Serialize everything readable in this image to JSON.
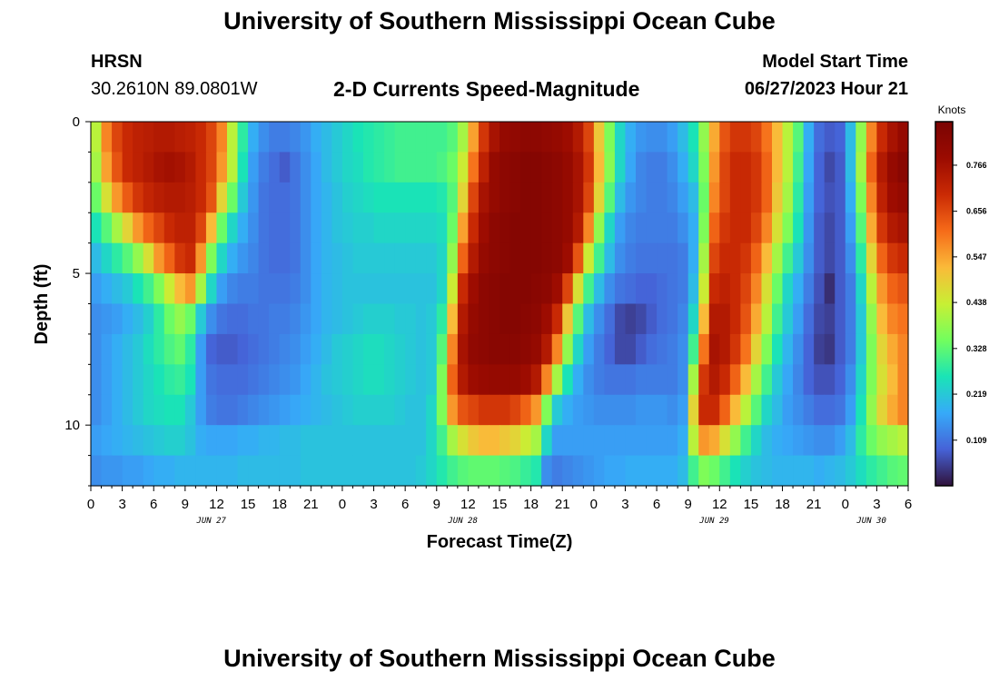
{
  "page": {
    "title_top": "University of Southern Mississippi Ocean Cube",
    "title_bottom": "University of Southern Mississippi Ocean Cube",
    "station_name": "HRSN",
    "station_coords": "30.2610N  89.0801W",
    "model_label": "Model Start Time",
    "model_time": "06/27/2023 Hour 21"
  },
  "chart_data": {
    "type": "heatmap",
    "title": "2-D Currents Speed-Magnitude",
    "xlabel": "Forecast Time(Z)",
    "ylabel": "Depth (ft)",
    "colorbar_label": "Knots",
    "colorbar_ticks": [
      "0.766",
      "0.656",
      "0.547",
      "0.438",
      "0.328",
      "0.219",
      "0.109"
    ],
    "colorbar_range": [
      0.0,
      0.87
    ],
    "x_range_hours": [
      0,
      78
    ],
    "y_range_ft": [
      0,
      12
    ],
    "x_tick_labels": [
      "0",
      "3",
      "6",
      "9",
      "12",
      "15",
      "18",
      "21",
      "0",
      "3",
      "6",
      "9",
      "12",
      "15",
      "18",
      "21",
      "0",
      "3",
      "6",
      "9",
      "12",
      "15",
      "18",
      "21",
      "0",
      "3",
      "6"
    ],
    "y_tick_labels": [
      "0",
      "5",
      "10"
    ],
    "date_labels": [
      "JUN 27",
      "JUN 28",
      "JUN 29",
      "JUN 30"
    ],
    "hours": [
      0,
      1,
      2,
      3,
      4,
      5,
      6,
      7,
      8,
      9,
      10,
      11,
      12,
      13,
      14,
      15,
      16,
      17,
      18,
      19,
      20,
      21,
      22,
      23,
      24,
      25,
      26,
      27,
      28,
      29,
      30,
      31,
      32,
      33,
      34,
      35,
      36,
      37,
      38,
      39,
      40,
      41,
      42,
      43,
      44,
      45,
      46,
      47,
      48,
      49,
      50,
      51,
      52,
      53,
      54,
      55,
      56,
      57,
      58,
      59,
      60,
      61,
      62,
      63,
      64,
      65,
      66,
      67,
      68,
      69,
      70,
      71,
      72,
      73,
      74,
      75,
      76,
      77
    ],
    "depths_ft": [
      0.5,
      1.5,
      2.5,
      3.5,
      4.5,
      5.5,
      6.5,
      7.5,
      8.5,
      9.5,
      10.5,
      11.5
    ],
    "speed_knots": [
      [
        0.42,
        0.58,
        0.66,
        0.7,
        0.72,
        0.73,
        0.74,
        0.74,
        0.73,
        0.72,
        0.7,
        0.66,
        0.58,
        0.42,
        0.28,
        0.18,
        0.14,
        0.12,
        0.12,
        0.13,
        0.15,
        0.18,
        0.2,
        0.22,
        0.24,
        0.26,
        0.27,
        0.28,
        0.29,
        0.3,
        0.3,
        0.3,
        0.3,
        0.3,
        0.32,
        0.4,
        0.55,
        0.68,
        0.76,
        0.8,
        0.81,
        0.82,
        0.82,
        0.81,
        0.8,
        0.78,
        0.74,
        0.66,
        0.5,
        0.36,
        0.24,
        0.18,
        0.15,
        0.14,
        0.14,
        0.16,
        0.2,
        0.26,
        0.38,
        0.54,
        0.64,
        0.68,
        0.68,
        0.66,
        0.6,
        0.52,
        0.42,
        0.32,
        0.18,
        0.1,
        0.08,
        0.09,
        0.2,
        0.38,
        0.58,
        0.7,
        0.76,
        0.8
      ],
      [
        0.4,
        0.55,
        0.64,
        0.7,
        0.72,
        0.74,
        0.76,
        0.77,
        0.76,
        0.74,
        0.7,
        0.66,
        0.56,
        0.42,
        0.26,
        0.16,
        0.12,
        0.1,
        0.08,
        0.11,
        0.14,
        0.17,
        0.2,
        0.22,
        0.24,
        0.25,
        0.27,
        0.28,
        0.29,
        0.3,
        0.3,
        0.3,
        0.3,
        0.31,
        0.34,
        0.44,
        0.6,
        0.72,
        0.8,
        0.82,
        0.83,
        0.84,
        0.84,
        0.83,
        0.82,
        0.8,
        0.76,
        0.68,
        0.52,
        0.37,
        0.24,
        0.17,
        0.13,
        0.12,
        0.12,
        0.14,
        0.18,
        0.24,
        0.36,
        0.56,
        0.66,
        0.7,
        0.7,
        0.68,
        0.62,
        0.52,
        0.42,
        0.3,
        0.17,
        0.09,
        0.06,
        0.08,
        0.2,
        0.4,
        0.62,
        0.74,
        0.8,
        0.83
      ],
      [
        0.34,
        0.46,
        0.56,
        0.63,
        0.68,
        0.71,
        0.73,
        0.74,
        0.74,
        0.73,
        0.7,
        0.64,
        0.48,
        0.34,
        0.22,
        0.15,
        0.11,
        0.1,
        0.1,
        0.11,
        0.14,
        0.17,
        0.19,
        0.21,
        0.23,
        0.24,
        0.25,
        0.26,
        0.26,
        0.26,
        0.26,
        0.26,
        0.26,
        0.27,
        0.32,
        0.48,
        0.66,
        0.76,
        0.8,
        0.82,
        0.83,
        0.84,
        0.84,
        0.83,
        0.82,
        0.8,
        0.76,
        0.66,
        0.48,
        0.32,
        0.2,
        0.15,
        0.13,
        0.12,
        0.12,
        0.13,
        0.16,
        0.2,
        0.34,
        0.58,
        0.66,
        0.7,
        0.7,
        0.68,
        0.62,
        0.5,
        0.4,
        0.28,
        0.16,
        0.09,
        0.07,
        0.08,
        0.18,
        0.36,
        0.58,
        0.72,
        0.78,
        0.8
      ],
      [
        0.26,
        0.32,
        0.4,
        0.48,
        0.56,
        0.62,
        0.66,
        0.7,
        0.72,
        0.72,
        0.66,
        0.52,
        0.34,
        0.24,
        0.18,
        0.14,
        0.11,
        0.1,
        0.1,
        0.11,
        0.14,
        0.17,
        0.19,
        0.21,
        0.22,
        0.23,
        0.23,
        0.24,
        0.24,
        0.24,
        0.24,
        0.24,
        0.24,
        0.25,
        0.34,
        0.55,
        0.7,
        0.78,
        0.82,
        0.83,
        0.84,
        0.84,
        0.84,
        0.83,
        0.82,
        0.8,
        0.74,
        0.58,
        0.38,
        0.24,
        0.16,
        0.13,
        0.12,
        0.12,
        0.12,
        0.12,
        0.14,
        0.18,
        0.36,
        0.62,
        0.68,
        0.7,
        0.7,
        0.66,
        0.58,
        0.46,
        0.36,
        0.26,
        0.15,
        0.08,
        0.06,
        0.08,
        0.16,
        0.32,
        0.54,
        0.68,
        0.74,
        0.76
      ],
      [
        0.2,
        0.24,
        0.28,
        0.32,
        0.38,
        0.46,
        0.56,
        0.62,
        0.68,
        0.7,
        0.56,
        0.36,
        0.24,
        0.18,
        0.15,
        0.13,
        0.11,
        0.1,
        0.1,
        0.11,
        0.14,
        0.17,
        0.19,
        0.2,
        0.21,
        0.22,
        0.22,
        0.22,
        0.22,
        0.22,
        0.22,
        0.22,
        0.22,
        0.24,
        0.38,
        0.62,
        0.74,
        0.8,
        0.82,
        0.83,
        0.84,
        0.84,
        0.84,
        0.83,
        0.82,
        0.78,
        0.64,
        0.44,
        0.3,
        0.2,
        0.14,
        0.12,
        0.11,
        0.11,
        0.11,
        0.11,
        0.12,
        0.18,
        0.4,
        0.66,
        0.7,
        0.7,
        0.68,
        0.62,
        0.52,
        0.4,
        0.3,
        0.22,
        0.14,
        0.08,
        0.06,
        0.08,
        0.14,
        0.28,
        0.48,
        0.62,
        0.68,
        0.7
      ],
      [
        0.16,
        0.18,
        0.2,
        0.22,
        0.26,
        0.3,
        0.36,
        0.44,
        0.52,
        0.56,
        0.4,
        0.24,
        0.16,
        0.13,
        0.12,
        0.12,
        0.11,
        0.11,
        0.11,
        0.12,
        0.14,
        0.17,
        0.19,
        0.2,
        0.21,
        0.21,
        0.21,
        0.21,
        0.21,
        0.21,
        0.21,
        0.21,
        0.21,
        0.24,
        0.44,
        0.7,
        0.78,
        0.82,
        0.83,
        0.84,
        0.84,
        0.84,
        0.83,
        0.82,
        0.78,
        0.66,
        0.46,
        0.3,
        0.2,
        0.14,
        0.11,
        0.1,
        0.09,
        0.09,
        0.1,
        0.11,
        0.12,
        0.2,
        0.44,
        0.7,
        0.72,
        0.7,
        0.66,
        0.58,
        0.46,
        0.34,
        0.24,
        0.18,
        0.12,
        0.07,
        0.03,
        0.08,
        0.12,
        0.24,
        0.42,
        0.56,
        0.62,
        0.64
      ],
      [
        0.14,
        0.15,
        0.16,
        0.18,
        0.2,
        0.23,
        0.28,
        0.34,
        0.38,
        0.34,
        0.22,
        0.14,
        0.11,
        0.1,
        0.1,
        0.11,
        0.11,
        0.12,
        0.12,
        0.13,
        0.15,
        0.17,
        0.19,
        0.2,
        0.21,
        0.22,
        0.23,
        0.23,
        0.23,
        0.22,
        0.22,
        0.21,
        0.22,
        0.28,
        0.52,
        0.74,
        0.8,
        0.82,
        0.83,
        0.84,
        0.84,
        0.83,
        0.82,
        0.78,
        0.7,
        0.5,
        0.32,
        0.2,
        0.14,
        0.1,
        0.06,
        0.05,
        0.06,
        0.08,
        0.1,
        0.11,
        0.13,
        0.24,
        0.52,
        0.74,
        0.74,
        0.7,
        0.64,
        0.54,
        0.42,
        0.3,
        0.22,
        0.16,
        0.1,
        0.06,
        0.05,
        0.08,
        0.12,
        0.22,
        0.38,
        0.52,
        0.58,
        0.6
      ],
      [
        0.14,
        0.16,
        0.18,
        0.2,
        0.22,
        0.25,
        0.28,
        0.31,
        0.33,
        0.28,
        0.16,
        0.09,
        0.08,
        0.08,
        0.09,
        0.1,
        0.11,
        0.12,
        0.13,
        0.14,
        0.16,
        0.18,
        0.2,
        0.22,
        0.23,
        0.24,
        0.25,
        0.25,
        0.24,
        0.23,
        0.22,
        0.21,
        0.22,
        0.32,
        0.58,
        0.76,
        0.81,
        0.82,
        0.83,
        0.83,
        0.83,
        0.82,
        0.8,
        0.74,
        0.58,
        0.38,
        0.24,
        0.16,
        0.12,
        0.09,
        0.06,
        0.06,
        0.08,
        0.1,
        0.11,
        0.12,
        0.14,
        0.3,
        0.6,
        0.76,
        0.74,
        0.68,
        0.6,
        0.48,
        0.36,
        0.26,
        0.19,
        0.14,
        0.09,
        0.05,
        0.04,
        0.08,
        0.12,
        0.22,
        0.36,
        0.48,
        0.54,
        0.58
      ],
      [
        0.14,
        0.16,
        0.18,
        0.2,
        0.22,
        0.24,
        0.26,
        0.28,
        0.29,
        0.26,
        0.16,
        0.11,
        0.1,
        0.1,
        0.1,
        0.11,
        0.12,
        0.13,
        0.14,
        0.15,
        0.17,
        0.19,
        0.21,
        0.22,
        0.23,
        0.24,
        0.25,
        0.25,
        0.24,
        0.23,
        0.22,
        0.21,
        0.22,
        0.36,
        0.62,
        0.74,
        0.78,
        0.79,
        0.8,
        0.8,
        0.8,
        0.78,
        0.74,
        0.58,
        0.4,
        0.26,
        0.18,
        0.14,
        0.12,
        0.11,
        0.11,
        0.11,
        0.12,
        0.12,
        0.12,
        0.12,
        0.14,
        0.4,
        0.68,
        0.74,
        0.7,
        0.62,
        0.52,
        0.4,
        0.3,
        0.22,
        0.17,
        0.13,
        0.09,
        0.07,
        0.07,
        0.09,
        0.14,
        0.24,
        0.36,
        0.46,
        0.52,
        0.58
      ],
      [
        0.14,
        0.16,
        0.18,
        0.2,
        0.22,
        0.24,
        0.25,
        0.26,
        0.26,
        0.22,
        0.16,
        0.12,
        0.11,
        0.11,
        0.12,
        0.13,
        0.14,
        0.15,
        0.16,
        0.17,
        0.18,
        0.19,
        0.2,
        0.21,
        0.22,
        0.23,
        0.23,
        0.23,
        0.23,
        0.22,
        0.21,
        0.21,
        0.24,
        0.36,
        0.56,
        0.64,
        0.66,
        0.68,
        0.68,
        0.68,
        0.66,
        0.62,
        0.56,
        0.36,
        0.22,
        0.18,
        0.16,
        0.15,
        0.14,
        0.14,
        0.14,
        0.14,
        0.15,
        0.15,
        0.15,
        0.14,
        0.16,
        0.48,
        0.7,
        0.7,
        0.62,
        0.52,
        0.42,
        0.32,
        0.24,
        0.2,
        0.16,
        0.14,
        0.12,
        0.1,
        0.1,
        0.11,
        0.16,
        0.26,
        0.38,
        0.48,
        0.54,
        0.58
      ],
      [
        0.16,
        0.17,
        0.18,
        0.19,
        0.2,
        0.21,
        0.22,
        0.23,
        0.23,
        0.21,
        0.18,
        0.17,
        0.17,
        0.17,
        0.18,
        0.18,
        0.19,
        0.19,
        0.2,
        0.2,
        0.21,
        0.21,
        0.21,
        0.21,
        0.21,
        0.21,
        0.21,
        0.21,
        0.21,
        0.21,
        0.21,
        0.21,
        0.24,
        0.3,
        0.4,
        0.46,
        0.5,
        0.52,
        0.52,
        0.5,
        0.48,
        0.44,
        0.4,
        0.24,
        0.16,
        0.16,
        0.16,
        0.16,
        0.16,
        0.16,
        0.16,
        0.16,
        0.16,
        0.16,
        0.16,
        0.16,
        0.18,
        0.42,
        0.56,
        0.54,
        0.46,
        0.38,
        0.3,
        0.24,
        0.2,
        0.18,
        0.17,
        0.16,
        0.15,
        0.14,
        0.14,
        0.16,
        0.2,
        0.28,
        0.34,
        0.38,
        0.4,
        0.42
      ],
      [
        0.14,
        0.15,
        0.15,
        0.16,
        0.16,
        0.17,
        0.18,
        0.18,
        0.19,
        0.19,
        0.19,
        0.19,
        0.19,
        0.19,
        0.2,
        0.2,
        0.2,
        0.2,
        0.2,
        0.2,
        0.21,
        0.21,
        0.21,
        0.21,
        0.21,
        0.21,
        0.21,
        0.21,
        0.21,
        0.21,
        0.21,
        0.22,
        0.24,
        0.27,
        0.3,
        0.32,
        0.33,
        0.33,
        0.33,
        0.32,
        0.31,
        0.29,
        0.27,
        0.14,
        0.12,
        0.13,
        0.14,
        0.15,
        0.16,
        0.17,
        0.17,
        0.18,
        0.18,
        0.18,
        0.18,
        0.18,
        0.2,
        0.3,
        0.36,
        0.34,
        0.3,
        0.26,
        0.23,
        0.21,
        0.2,
        0.19,
        0.19,
        0.19,
        0.19,
        0.18,
        0.19,
        0.2,
        0.22,
        0.25,
        0.28,
        0.3,
        0.32,
        0.33
      ]
    ]
  }
}
